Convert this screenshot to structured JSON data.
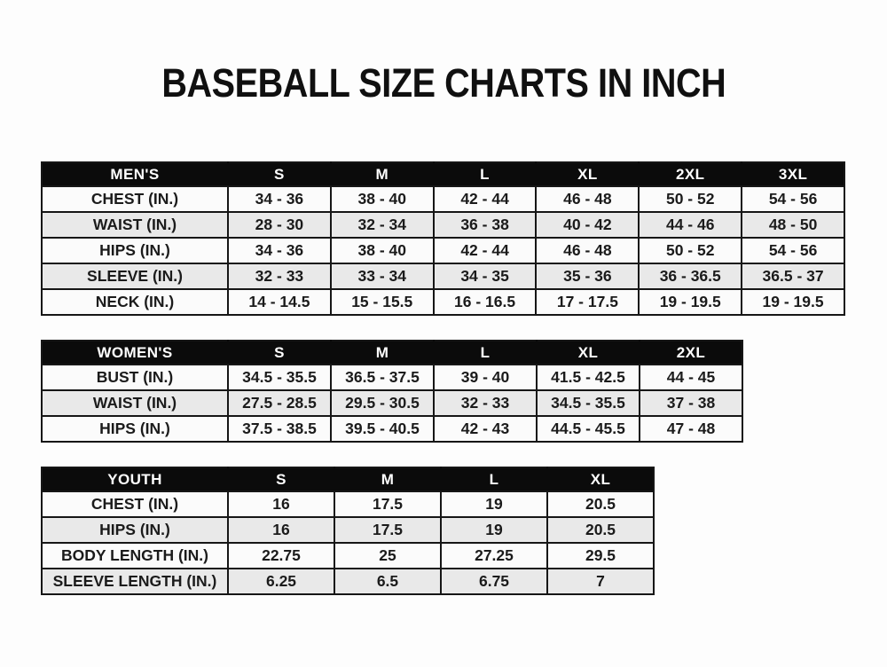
{
  "page": {
    "title": "BASEBALL SIZE CHARTS IN INCH"
  },
  "colors": {
    "header_bg": "#0b0b0b",
    "header_text": "#ffffff",
    "stripe_gray": "#e9e9e9",
    "row_white": "#fbfbfb",
    "border": "#161616",
    "title_text": "#101010"
  },
  "tables": [
    {
      "id": "mens",
      "header": [
        "MEN'S",
        "S",
        "M",
        "L",
        "XL",
        "2XL",
        "3XL"
      ],
      "rows": [
        [
          "CHEST (IN.)",
          "34 - 36",
          "38 - 40",
          "42 - 44",
          "46 - 48",
          "50 - 52",
          "54 - 56"
        ],
        [
          "WAIST (IN.)",
          "28 - 30",
          "32 - 34",
          "36 - 38",
          "40 - 42",
          "44 - 46",
          "48 - 50"
        ],
        [
          "HIPS (IN.)",
          "34 - 36",
          "38 - 40",
          "42 - 44",
          "46 - 48",
          "50 - 52",
          "54 - 56"
        ],
        [
          "SLEEVE (IN.)",
          "32 - 33",
          "33 - 34",
          "34 - 35",
          "35 - 36",
          "36 - 36.5",
          "36.5 - 37"
        ],
        [
          "NECK (IN.)",
          "14 - 14.5",
          "15 - 15.5",
          "16 - 16.5",
          "17 - 17.5",
          "19 - 19.5",
          "19 - 19.5"
        ]
      ]
    },
    {
      "id": "womens",
      "header": [
        "WOMEN'S",
        "S",
        "M",
        "L",
        "XL",
        "2XL"
      ],
      "rows": [
        [
          "BUST (IN.)",
          "34.5 - 35.5",
          "36.5 - 37.5",
          "39 - 40",
          "41.5 - 42.5",
          "44 - 45"
        ],
        [
          "WAIST (IN.)",
          "27.5 - 28.5",
          "29.5 - 30.5",
          "32 - 33",
          "34.5 - 35.5",
          "37 - 38"
        ],
        [
          "HIPS (IN.)",
          "37.5 - 38.5",
          "39.5 - 40.5",
          "42 - 43",
          "44.5 - 45.5",
          "47 - 48"
        ]
      ]
    },
    {
      "id": "youth",
      "header": [
        "YOUTH",
        "S",
        "M",
        "L",
        "XL"
      ],
      "rows": [
        [
          "CHEST (IN.)",
          "16",
          "17.5",
          "19",
          "20.5"
        ],
        [
          "HIPS (IN.)",
          "16",
          "17.5",
          "19",
          "20.5"
        ],
        [
          "BODY LENGTH (IN.)",
          "22.75",
          "25",
          "27.25",
          "29.5"
        ],
        [
          "SLEEVE LENGTH (IN.)",
          "6.25",
          "6.5",
          "6.75",
          "7"
        ]
      ]
    }
  ]
}
